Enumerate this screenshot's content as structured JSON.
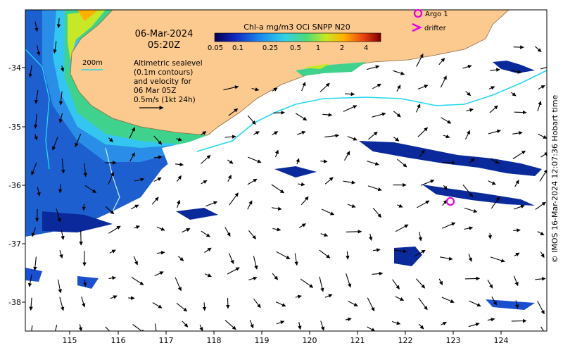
{
  "map": {
    "date": "06-Mar-2024",
    "time": "05:20Z",
    "isobath_label": "200m",
    "altimetry_lines": [
      "Altimetric sealevel",
      "(0.1m contours)",
      "and velocity for",
      "06 Mar 05Z",
      "0.5m/s (1kt 24h)"
    ],
    "colorbar": {
      "title": "Chl-a mg/m3 OCi SNPP N20",
      "tick_labels": [
        "0.05",
        "0.1",
        "0.25",
        "0.5",
        "1",
        "2",
        "4"
      ]
    },
    "legend": {
      "argo": "Argo 1",
      "drifter": "drifter",
      "argo_color": "#e600e6",
      "drifter_color": "#e600e6"
    },
    "x_ticks": [
      "115",
      "116",
      "117",
      "118",
      "119",
      "120",
      "121",
      "122",
      "123",
      "124"
    ],
    "y_ticks": [
      "-34",
      "-35",
      "-36",
      "-37",
      "-38"
    ],
    "credit": "© IMOS 16-Mar-2024 12:07:36 Hobart time",
    "colors": {
      "land": "#fcc98f",
      "ocean_deep": "#1e5fd0",
      "shelf": "#34c6f0",
      "contour": "#22d8ee"
    }
  }
}
